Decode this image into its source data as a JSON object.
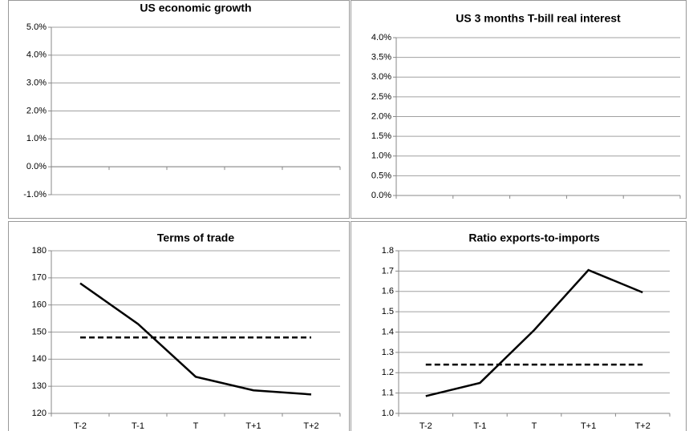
{
  "chart_data": [
    {
      "type": "line",
      "title": "US economic growth",
      "ylim": [
        -1,
        5
      ],
      "yticks": [
        {
          "value": -1,
          "label": "-1.0%"
        },
        {
          "value": 0,
          "label": "0.0%"
        },
        {
          "value": 1,
          "label": "1.0%"
        },
        {
          "value": 2,
          "label": "2.0%"
        },
        {
          "value": 3,
          "label": "3.0%"
        },
        {
          "value": 4,
          "label": "4.0%"
        },
        {
          "value": 5,
          "label": "5.0%"
        }
      ],
      "grid": true,
      "series": []
    },
    {
      "type": "line",
      "title": "US 3 months T-bill real interest",
      "ylim": [
        0,
        4
      ],
      "yticks": [
        {
          "value": 0,
          "label": "0.0%"
        },
        {
          "value": 0.5,
          "label": "0.5%"
        },
        {
          "value": 1,
          "label": "1.0%"
        },
        {
          "value": 1.5,
          "label": "1.5%"
        },
        {
          "value": 2,
          "label": "2.0%"
        },
        {
          "value": 2.5,
          "label": "2.5%"
        },
        {
          "value": 3,
          "label": "3.0%"
        },
        {
          "value": 3.5,
          "label": "3.5%"
        },
        {
          "value": 4,
          "label": "4.0%"
        }
      ],
      "grid": true,
      "series": []
    },
    {
      "type": "line",
      "title": "Terms of trade",
      "categories": [
        "T-2",
        "T-1",
        "T",
        "T+1",
        "T+2"
      ],
      "ylim": [
        120,
        180
      ],
      "yticks": [
        120,
        130,
        140,
        150,
        160,
        170,
        180
      ],
      "grid": true,
      "series": [
        {
          "color": "#000000",
          "dashed": false,
          "values": [
            168,
            153,
            133.5,
            128.5,
            127
          ]
        },
        {
          "color": "#000000",
          "dashed": true,
          "values": [
            148,
            148,
            148,
            148,
            148
          ]
        }
      ]
    },
    {
      "type": "line",
      "title": "Ratio exports-to-imports",
      "categories": [
        "T-2",
        "T-1",
        "T",
        "T+1",
        "T+2"
      ],
      "ylim": [
        1,
        1.8
      ],
      "yticks": [
        {
          "value": 1,
          "label": "1.0"
        },
        1.1,
        1.2,
        1.3,
        1.4,
        1.5,
        1.6,
        1.7,
        1.8
      ],
      "grid": true,
      "series": [
        {
          "color": "#000000",
          "dashed": false,
          "values": [
            1.085,
            1.15,
            1.41,
            1.705,
            1.595
          ]
        },
        {
          "color": "#000000",
          "dashed": true,
          "values": [
            1.24,
            1.24,
            1.24,
            1.24,
            1.24
          ]
        }
      ]
    }
  ]
}
